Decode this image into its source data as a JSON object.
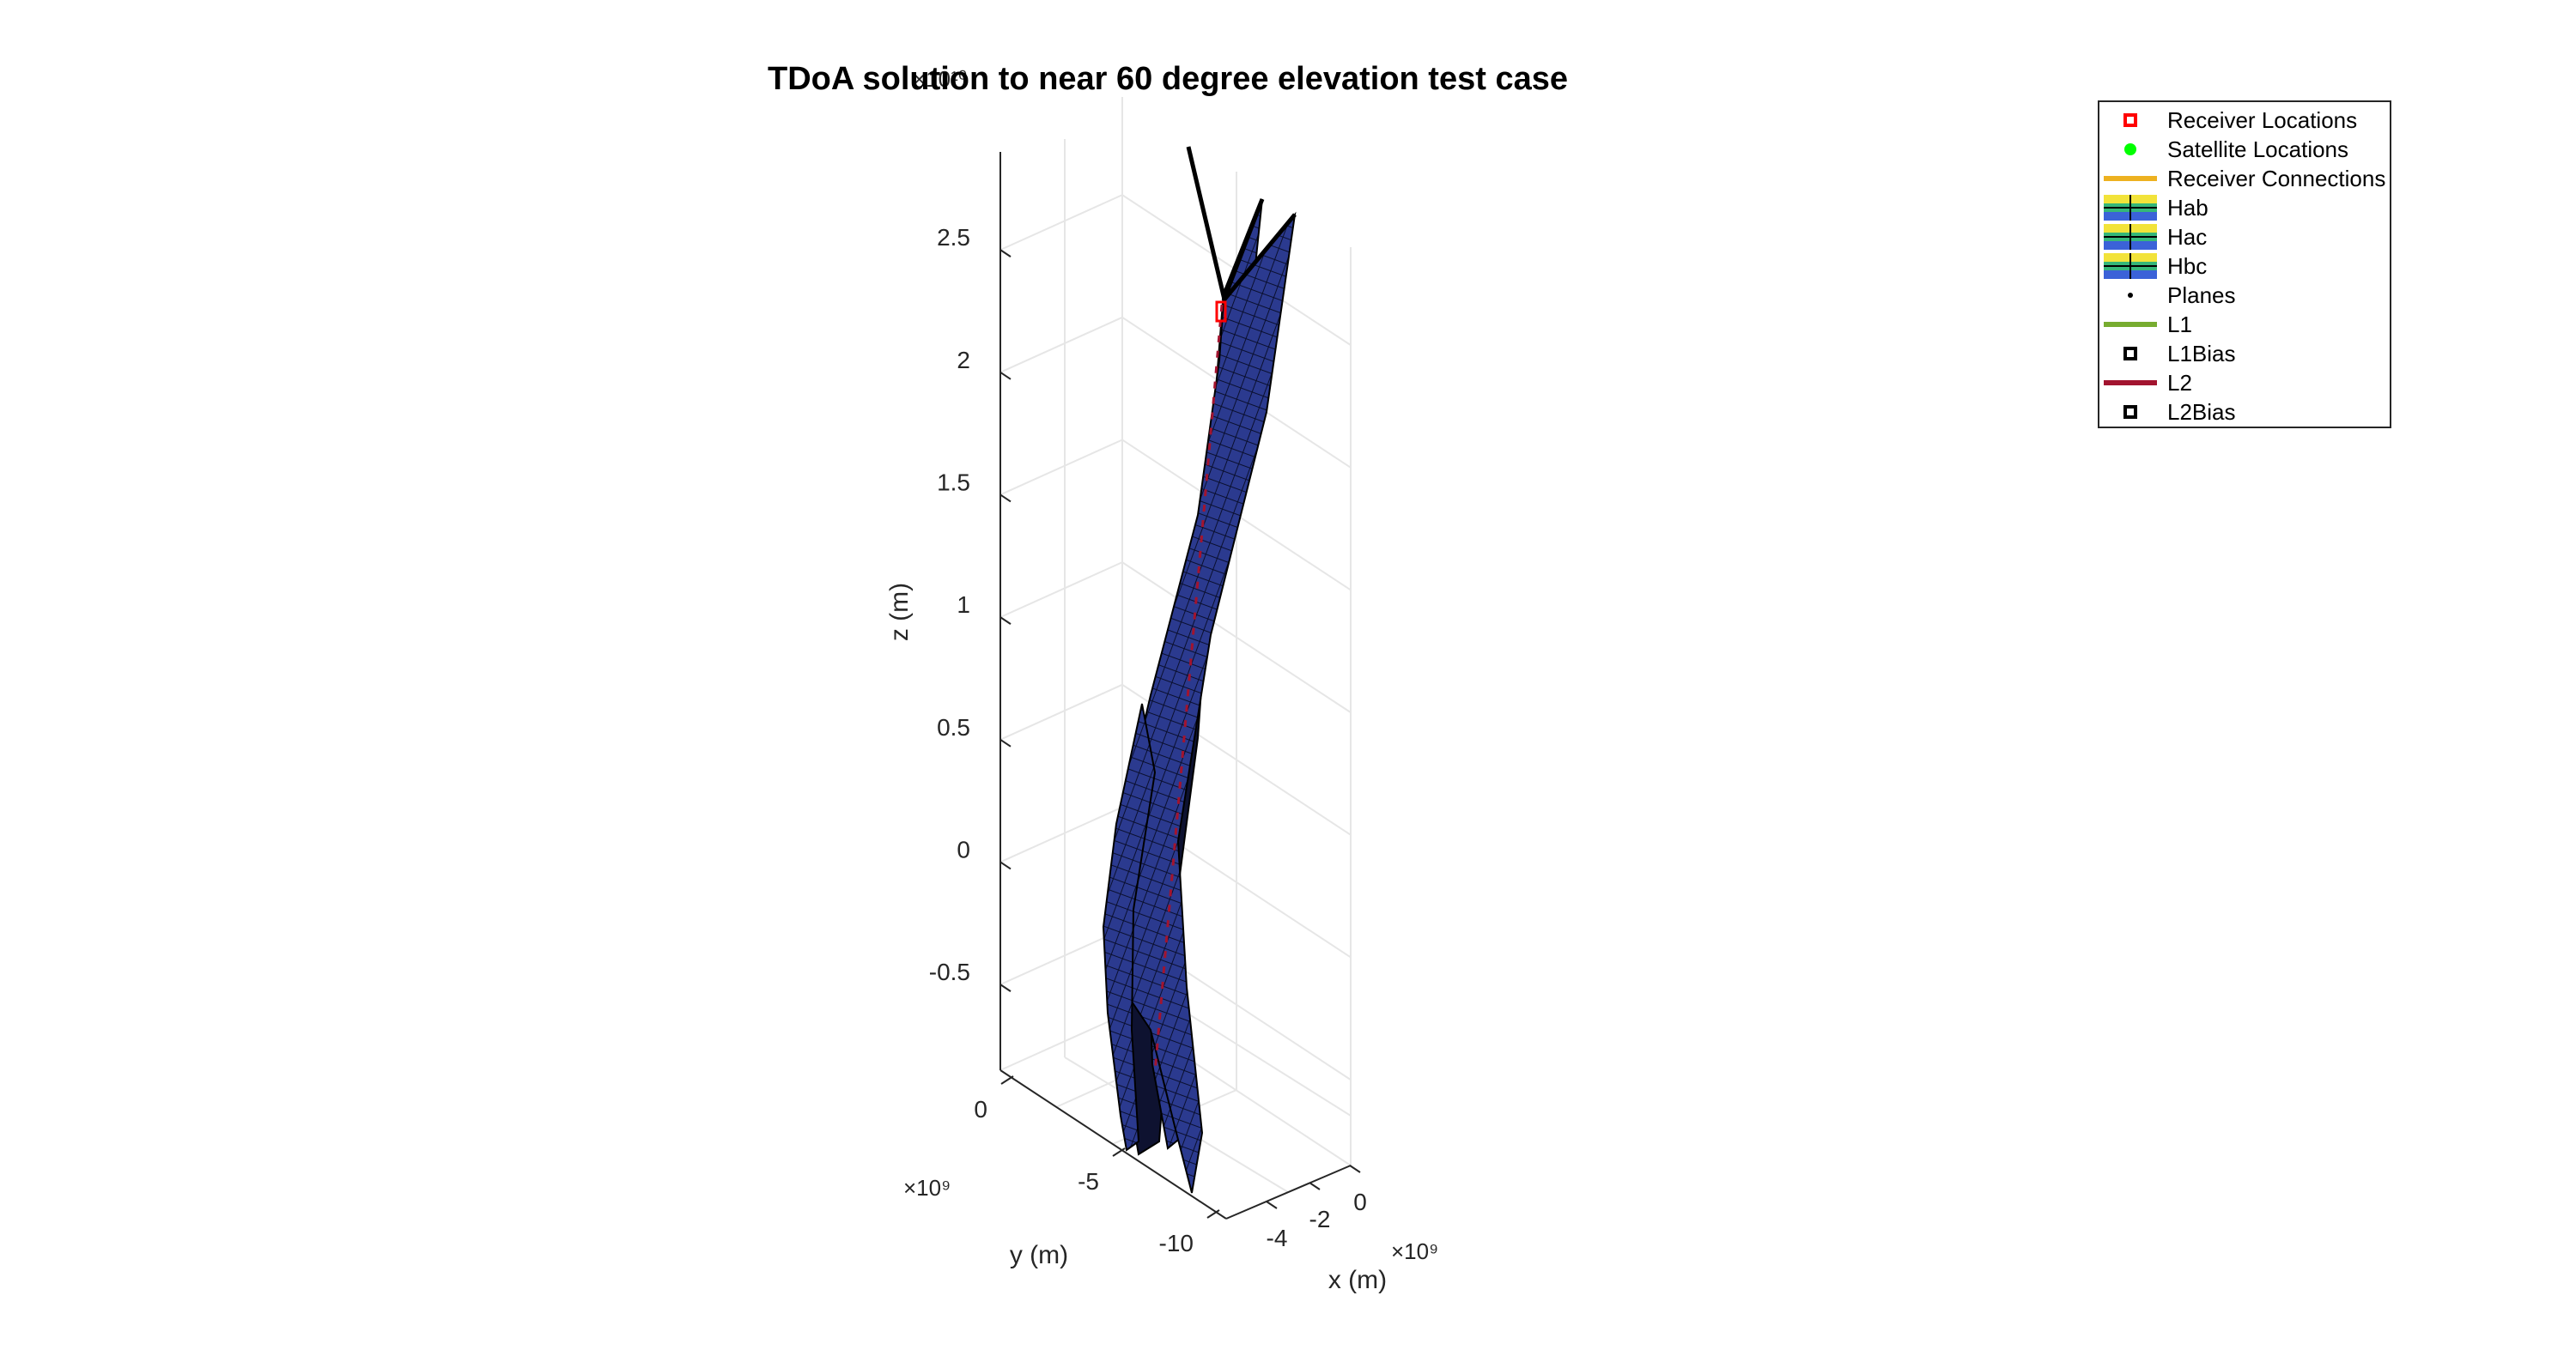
{
  "chart_data": {
    "type": "surface3d",
    "title": "TDoA solution to near 60 degree elevation test case",
    "xlabel": "x (m)",
    "ylabel": "y (m)",
    "zlabel": "z (m)",
    "x_exponent": "×10⁹",
    "y_exponent": "×10⁹",
    "z_exponent": "×10¹⁰",
    "x_ticks": [
      -4,
      -2,
      0
    ],
    "y_ticks": [
      -10,
      -5,
      0
    ],
    "z_ticks": [
      -0.5,
      0,
      0.5,
      1,
      1.5,
      2,
      2.5
    ],
    "x_tick_labels": [
      "-4",
      "-2",
      "0"
    ],
    "y_tick_labels": [
      "-10",
      "-5",
      "0"
    ],
    "z_tick_labels": [
      "-0.5",
      "0",
      "0.5",
      "1",
      "1.5",
      "2",
      "2.5"
    ],
    "surfaces": [
      "Hab",
      "Hac",
      "Hbc"
    ],
    "surface_color": "#2b3a8f",
    "grid": true,
    "legend_position": "top-right",
    "legend": [
      {
        "label": "Receiver Locations",
        "marker": "square",
        "color": "#ff0000"
      },
      {
        "label": "Satellite Locations",
        "marker": "circle",
        "color": "#00ff00"
      },
      {
        "label": "Receiver Connections",
        "marker": "line",
        "color": "#edb120"
      },
      {
        "label": "Hab",
        "marker": "surface",
        "color": "#2b3a8f"
      },
      {
        "label": "Hac",
        "marker": "surface",
        "color": "#2b3a8f"
      },
      {
        "label": "Hbc",
        "marker": "surface",
        "color": "#2b3a8f"
      },
      {
        "label": "Planes",
        "marker": "dot",
        "color": "#000000"
      },
      {
        "label": "L1",
        "marker": "line",
        "color": "#77ac30"
      },
      {
        "label": "L1Bias",
        "marker": "square",
        "color": "#000000"
      },
      {
        "label": "L2",
        "marker": "line",
        "color": "#a2142f"
      },
      {
        "label": "L2Bias",
        "marker": "square",
        "color": "#000000"
      }
    ]
  }
}
